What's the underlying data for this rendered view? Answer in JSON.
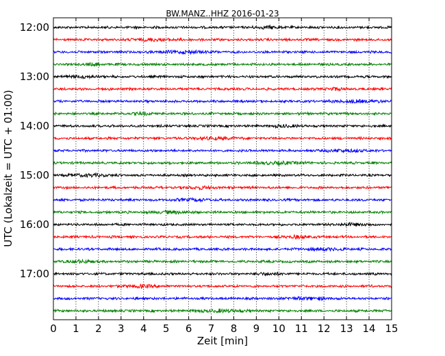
{
  "chart_data": {
    "type": "line",
    "title": "BW.MANZ..HHZ 2016-01-23",
    "xlabel": "Zeit  [min]",
    "ylabel": "UTC (Lokalzeit = UTC + 01:00)",
    "xlim": [
      0,
      15
    ],
    "x_ticks": [
      "0",
      "1",
      "2",
      "3",
      "4",
      "5",
      "6",
      "7",
      "8",
      "9",
      "10",
      "11",
      "12",
      "13",
      "14",
      "15"
    ],
    "y_tick_labels": [
      "12:00",
      "13:00",
      "14:00",
      "15:00",
      "16:00",
      "17:00"
    ],
    "grid": "vertical dotted lines at each minute",
    "trace_interval_min": 15,
    "trace_start": "12:00",
    "trace_count": 24,
    "trace_colors": [
      "#000000",
      "#ff0000",
      "#0000ff",
      "#008000"
    ]
  }
}
